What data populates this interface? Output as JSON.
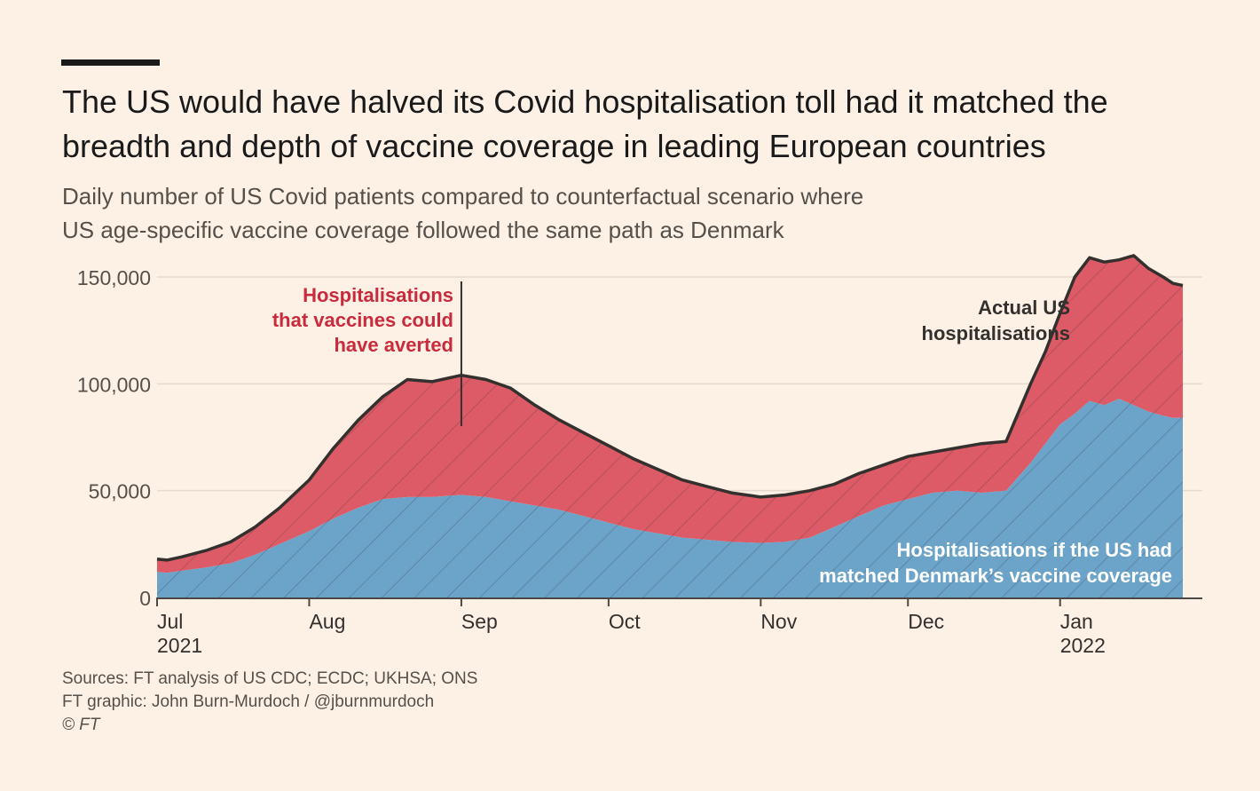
{
  "title": "The US would have halved its Covid hospitalisation toll had it matched the breadth and depth of vaccine coverage in leading European countries",
  "subtitle_line1": "Daily number of US Covid patients compared to counterfactual scenario where",
  "subtitle_line2": "US age-specific vaccine coverage followed the same path as Denmark",
  "colors": {
    "background": "#fdf1e6",
    "averted": "#dd5b67",
    "counterfactual": "#6ba3c9",
    "actual_line": "#33302e",
    "annotation_red": "#c92a3c",
    "grid": "#e6dacd"
  },
  "chart_data": {
    "type": "area",
    "title": "Daily number of US Covid patients compared to counterfactual scenario",
    "xlabel": "",
    "ylabel": "",
    "ylim": [
      0,
      150000
    ],
    "yticks": [
      0,
      50000,
      100000,
      150000
    ],
    "ytick_labels": [
      "0",
      "50,000",
      "100,000",
      "150,000"
    ],
    "xlim_days": [
      0,
      209
    ],
    "xticks": [
      {
        "day": 0,
        "line1": "Jul",
        "line2": "2021"
      },
      {
        "day": 31,
        "line1": "Aug",
        "line2": ""
      },
      {
        "day": 62,
        "line1": "Sep",
        "line2": ""
      },
      {
        "day": 92,
        "line1": "Oct",
        "line2": ""
      },
      {
        "day": 123,
        "line1": "Nov",
        "line2": ""
      },
      {
        "day": 153,
        "line1": "Dec",
        "line2": ""
      },
      {
        "day": 184,
        "line1": "Jan",
        "line2": "2022"
      }
    ],
    "x_days": [
      0,
      2,
      5,
      10,
      15,
      20,
      25,
      31,
      36,
      41,
      46,
      51,
      56,
      62,
      67,
      72,
      77,
      82,
      87,
      92,
      97,
      102,
      107,
      112,
      117,
      123,
      128,
      133,
      138,
      143,
      148,
      153,
      158,
      163,
      168,
      173,
      178,
      181,
      184,
      187,
      190,
      193,
      196,
      199,
      202,
      205,
      207,
      209
    ],
    "series": [
      {
        "name": "Actual US hospitalisations",
        "values": [
          18000,
          17500,
          19000,
          22000,
          26000,
          33000,
          42000,
          55000,
          70000,
          83000,
          94000,
          102000,
          101000,
          104000,
          102000,
          98000,
          90000,
          83000,
          77000,
          71000,
          65000,
          60000,
          55000,
          52000,
          49000,
          47000,
          48000,
          50000,
          53000,
          58000,
          62000,
          66000,
          68000,
          70000,
          72000,
          73000,
          100000,
          115000,
          133000,
          150000,
          159000,
          157000,
          158000,
          160000,
          154000,
          150000,
          147000,
          146000
        ]
      },
      {
        "name": "Hospitalisations if the US had matched Denmark's vaccine coverage",
        "values": [
          12000,
          11500,
          12500,
          14000,
          16000,
          20000,
          25000,
          31000,
          37000,
          42000,
          46000,
          47000,
          47000,
          48000,
          47000,
          45000,
          43000,
          41000,
          38000,
          35000,
          32000,
          30000,
          28000,
          27000,
          26000,
          25500,
          26000,
          28000,
          33000,
          38000,
          43000,
          46000,
          49000,
          50000,
          49000,
          50000,
          63000,
          72000,
          81000,
          86000,
          92000,
          90000,
          93000,
          90000,
          87000,
          85000,
          84000,
          84000
        ]
      }
    ],
    "annotations": {
      "averted": [
        "Hospitalisations",
        "that vaccines could",
        "have averted"
      ],
      "actual": [
        "Actual US",
        "hospitalisations"
      ],
      "counterfactual": [
        "Hospitalisations if the US had",
        "matched Denmark’s vaccine coverage"
      ]
    }
  },
  "footer": {
    "sources": "Sources: FT analysis of US CDC; ECDC; UKHSA; ONS",
    "graphic": "FT graphic: John Burn-Murdoch / @jburnmurdoch",
    "copyright": "© FT"
  }
}
